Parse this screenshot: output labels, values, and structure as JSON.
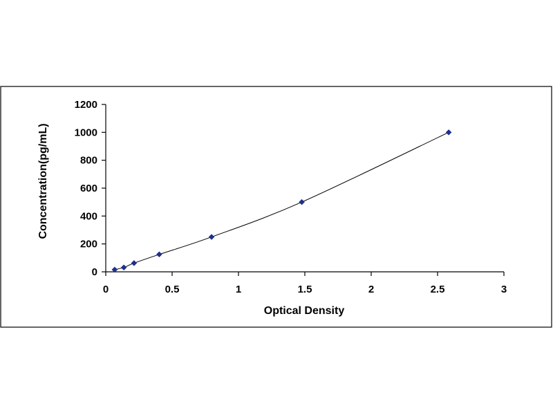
{
  "chart_data": {
    "type": "scatter",
    "title": "",
    "xlabel": "Optical Density",
    "ylabel": "Concentration(pg/mL)",
    "xlim": [
      0,
      3
    ],
    "ylim": [
      0,
      1200
    ],
    "x_ticks": [
      "0",
      "0.5",
      "1",
      "1.5",
      "2",
      "2.5",
      "3"
    ],
    "y_ticks": [
      "0",
      "200",
      "400",
      "600",
      "800",
      "1000",
      "1200"
    ],
    "grid": false,
    "legend": "none",
    "series": [
      {
        "x": [
          0.067,
          0.136,
          0.213,
          0.403,
          0.797,
          1.477,
          2.584
        ],
        "y": [
          15.6,
          31.2,
          62.5,
          125,
          250,
          500,
          1000
        ],
        "marker": "diamond",
        "marker_color": "#1f2f8f",
        "line": "smooth",
        "line_color": "#000000"
      }
    ]
  }
}
